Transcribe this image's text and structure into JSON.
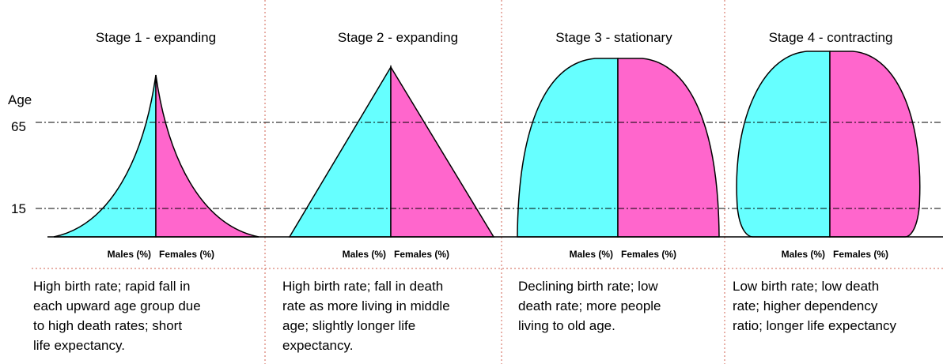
{
  "axis": {
    "label": "Age",
    "ticks": [
      "65",
      "15"
    ]
  },
  "stages": [
    {
      "title": "Stage 1 - expanding",
      "males": "Males (%)",
      "females": "Females (%)",
      "description": [
        "High birth rate; rapid fall in",
        "each upward age group due",
        "to high death rates; short",
        "life expectancy."
      ]
    },
    {
      "title": "Stage 2 - expanding",
      "males": "Males (%)",
      "females": "Females (%)",
      "description": [
        "High birth rate; fall in death",
        "rate as more living in middle",
        "age; slightly longer life",
        "expectancy."
      ]
    },
    {
      "title": "Stage 3 - stationary",
      "males": "Males (%)",
      "females": "Females (%)",
      "description": [
        "Declining birth rate; low",
        "death rate; more people",
        "living to old age."
      ]
    },
    {
      "title": "Stage 4 - contracting",
      "males": "Males (%)",
      "females": "Females (%)",
      "description": [
        "Low birth rate; low death",
        "rate; higher dependency",
        "ratio; longer life expectancy"
      ]
    }
  ]
}
